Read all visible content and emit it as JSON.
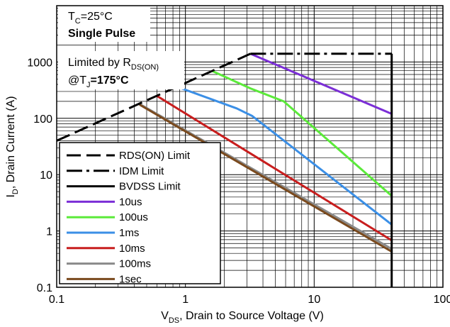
{
  "chart_data": {
    "type": "line",
    "x_scale": "log",
    "y_scale": "log",
    "xlim": [
      0.1,
      100
    ],
    "ylim": [
      0.1,
      10000
    ],
    "x_ticks": [
      {
        "value": 0.1,
        "label": "0.1"
      },
      {
        "value": 1,
        "label": "1"
      },
      {
        "value": 10,
        "label": "10"
      },
      {
        "value": 100,
        "label": "100"
      }
    ],
    "y_ticks": [
      {
        "value": 0.1,
        "label": "0.1"
      },
      {
        "value": 1,
        "label": "1"
      },
      {
        "value": 10,
        "label": "10"
      },
      {
        "value": 100,
        "label": "100"
      },
      {
        "value": 1000,
        "label": "1000"
      }
    ],
    "xlabel": {
      "main": "V",
      "sub": "DS",
      "rest": ", Drain to Source Voltage (V)"
    },
    "ylabel": {
      "main": "I",
      "sub": "D",
      "rest": ", Drain Current (A)"
    },
    "grid": true,
    "conditions": {
      "line1_main": "T",
      "line1_sub": "C",
      "line1_rest": "=25°C",
      "line2": "Single Pulse"
    },
    "annotation": {
      "line1_main": "Limited by R",
      "line1_sub": "DS(ON)",
      "line2_main": "@T",
      "line2_sub": "J",
      "line2_rest": "=175°C"
    },
    "legend_position": "bottom-left",
    "series": [
      {
        "name": "RDS(ON) Limit",
        "color": "#000000",
        "dash": "long-dash",
        "x": [
          0.1,
          3.2
        ],
        "y": [
          40,
          1400
        ]
      },
      {
        "name": "IDM Limit",
        "color": "#000000",
        "dash": "dash-dot",
        "x": [
          3.2,
          40
        ],
        "y": [
          1400,
          1400
        ]
      },
      {
        "name": "BVDSS Limit",
        "color": "#000000",
        "dash": "solid",
        "x": [
          40,
          40
        ],
        "y": [
          1400,
          0.1
        ]
      },
      {
        "name": "10us",
        "color": "#7b2ed6",
        "dash": "solid",
        "x": [
          3.2,
          40
        ],
        "y": [
          1400,
          120
        ]
      },
      {
        "name": "100us",
        "color": "#5bea3a",
        "dash": "solid",
        "x": [
          1.6,
          3.2,
          5.8,
          40
        ],
        "y": [
          700,
          340,
          200,
          4.2
        ]
      },
      {
        "name": "1ms",
        "color": "#3b8fe6",
        "dash": "solid",
        "x": [
          0.9,
          2.5,
          3.3,
          40
        ],
        "y": [
          350,
          150,
          110,
          1.3
        ]
      },
      {
        "name": "10ms",
        "color": "#c81e1e",
        "dash": "solid",
        "x": [
          0.6,
          40
        ],
        "y": [
          250,
          0.68
        ]
      },
      {
        "name": "100ms",
        "color": "#8a8a8a",
        "dash": "solid",
        "x": [
          0.44,
          40
        ],
        "y": [
          180,
          0.48
        ]
      },
      {
        "name": "1sec",
        "color": "#7a4a1e",
        "dash": "solid",
        "x": [
          0.44,
          40
        ],
        "y": [
          175,
          0.43
        ]
      }
    ]
  }
}
